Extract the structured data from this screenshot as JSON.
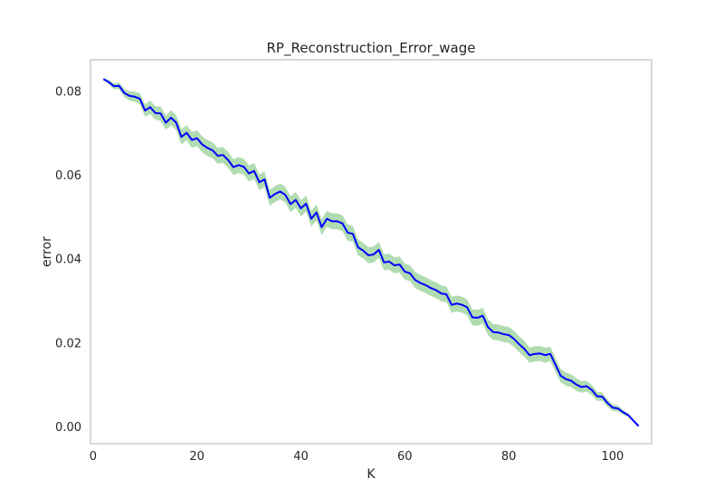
{
  "chart_data": {
    "type": "line",
    "title": "RP_Reconstruction_Error_wage",
    "xlabel": "K",
    "ylabel": "error",
    "xlim": [
      -0.5,
      107.5
    ],
    "ylim": [
      -0.004,
      0.0875
    ],
    "grid": false,
    "legend": "none",
    "x_ticks": [
      0,
      20,
      40,
      60,
      80,
      100
    ],
    "x_tick_labels": [
      "0",
      "20",
      "40",
      "60",
      "80",
      "100"
    ],
    "y_ticks": [
      0.0,
      0.02,
      0.04,
      0.06,
      0.08
    ],
    "y_tick_labels": [
      "0.00",
      "0.02",
      "0.04",
      "0.06",
      "0.08"
    ],
    "series": [
      {
        "color": "#0000ff",
        "band_color": "#a8d8a8",
        "x": [
          2,
          3,
          4,
          5,
          6,
          7,
          8,
          9,
          10,
          11,
          12,
          13,
          14,
          15,
          16,
          17,
          18,
          19,
          20,
          21,
          22,
          23,
          24,
          25,
          26,
          27,
          28,
          29,
          30,
          31,
          32,
          33,
          34,
          35,
          36,
          37,
          38,
          39,
          40,
          41,
          42,
          43,
          44,
          45,
          46,
          47,
          48,
          49,
          50,
          51,
          52,
          53,
          54,
          55,
          56,
          57,
          58,
          59,
          60,
          61,
          62,
          63,
          64,
          65,
          66,
          67,
          68,
          69,
          70,
          71,
          72,
          73,
          74,
          75,
          76,
          77,
          78,
          79,
          80,
          81,
          82,
          83,
          84,
          85,
          86,
          87,
          88,
          89,
          90,
          91,
          92,
          93,
          94,
          95,
          96,
          97,
          98,
          99,
          100,
          101,
          102,
          103,
          104,
          105
        ],
        "y": [
          0.0829,
          0.0822,
          0.0812,
          0.0813,
          0.0796,
          0.0789,
          0.0787,
          0.0782,
          0.0754,
          0.0762,
          0.0748,
          0.0747,
          0.0725,
          0.0737,
          0.0725,
          0.0691,
          0.0701,
          0.0684,
          0.0688,
          0.0673,
          0.0665,
          0.0659,
          0.0646,
          0.0648,
          0.0636,
          0.0619,
          0.0624,
          0.062,
          0.0604,
          0.061,
          0.0583,
          0.059,
          0.0546,
          0.0555,
          0.0561,
          0.0553,
          0.0531,
          0.0541,
          0.0521,
          0.0532,
          0.0496,
          0.0511,
          0.0476,
          0.0496,
          0.049,
          0.049,
          0.0485,
          0.0463,
          0.046,
          0.0428,
          0.042,
          0.0409,
          0.0411,
          0.0422,
          0.0392,
          0.0394,
          0.0385,
          0.0387,
          0.037,
          0.0366,
          0.035,
          0.0343,
          0.0338,
          0.0331,
          0.0326,
          0.0318,
          0.0316,
          0.0291,
          0.0294,
          0.0291,
          0.0285,
          0.0261,
          0.026,
          0.0265,
          0.0238,
          0.0226,
          0.0225,
          0.0221,
          0.0219,
          0.021,
          0.0197,
          0.0186,
          0.0171,
          0.0174,
          0.0175,
          0.0171,
          0.0174,
          0.0148,
          0.0122,
          0.0114,
          0.011,
          0.0101,
          0.0095,
          0.0097,
          0.0088,
          0.0073,
          0.0072,
          0.0057,
          0.0046,
          0.0044,
          0.0035,
          0.0028,
          0.0015,
          0.0002
        ],
        "band_halfwidth": [
          0.0003,
          0.0005,
          0.0007,
          0.0008,
          0.001,
          0.0011,
          0.0012,
          0.0013,
          0.0015,
          0.0016,
          0.0016,
          0.0017,
          0.0017,
          0.0018,
          0.0018,
          0.0018,
          0.0018,
          0.0019,
          0.0019,
          0.0019,
          0.0019,
          0.0019,
          0.0019,
          0.0019,
          0.0019,
          0.0019,
          0.0019,
          0.0019,
          0.0019,
          0.0019,
          0.0019,
          0.0019,
          0.0019,
          0.0019,
          0.0019,
          0.0019,
          0.0019,
          0.0019,
          0.0019,
          0.0019,
          0.0019,
          0.0019,
          0.0019,
          0.0019,
          0.0019,
          0.0019,
          0.0019,
          0.0019,
          0.0019,
          0.0019,
          0.0019,
          0.0019,
          0.0019,
          0.0019,
          0.0019,
          0.0019,
          0.0019,
          0.0019,
          0.0019,
          0.0019,
          0.0019,
          0.0019,
          0.0019,
          0.0019,
          0.0019,
          0.0019,
          0.0019,
          0.0019,
          0.0019,
          0.0019,
          0.0019,
          0.0019,
          0.0019,
          0.0019,
          0.0019,
          0.0019,
          0.0019,
          0.0019,
          0.0019,
          0.0019,
          0.0019,
          0.0019,
          0.0018,
          0.0018,
          0.0018,
          0.0018,
          0.0017,
          0.0017,
          0.0016,
          0.0016,
          0.0015,
          0.0015,
          0.0014,
          0.0013,
          0.0012,
          0.0011,
          0.001,
          0.0009,
          0.0008,
          0.0007,
          0.0006,
          0.0004,
          0.0003,
          0.0001
        ]
      }
    ]
  }
}
